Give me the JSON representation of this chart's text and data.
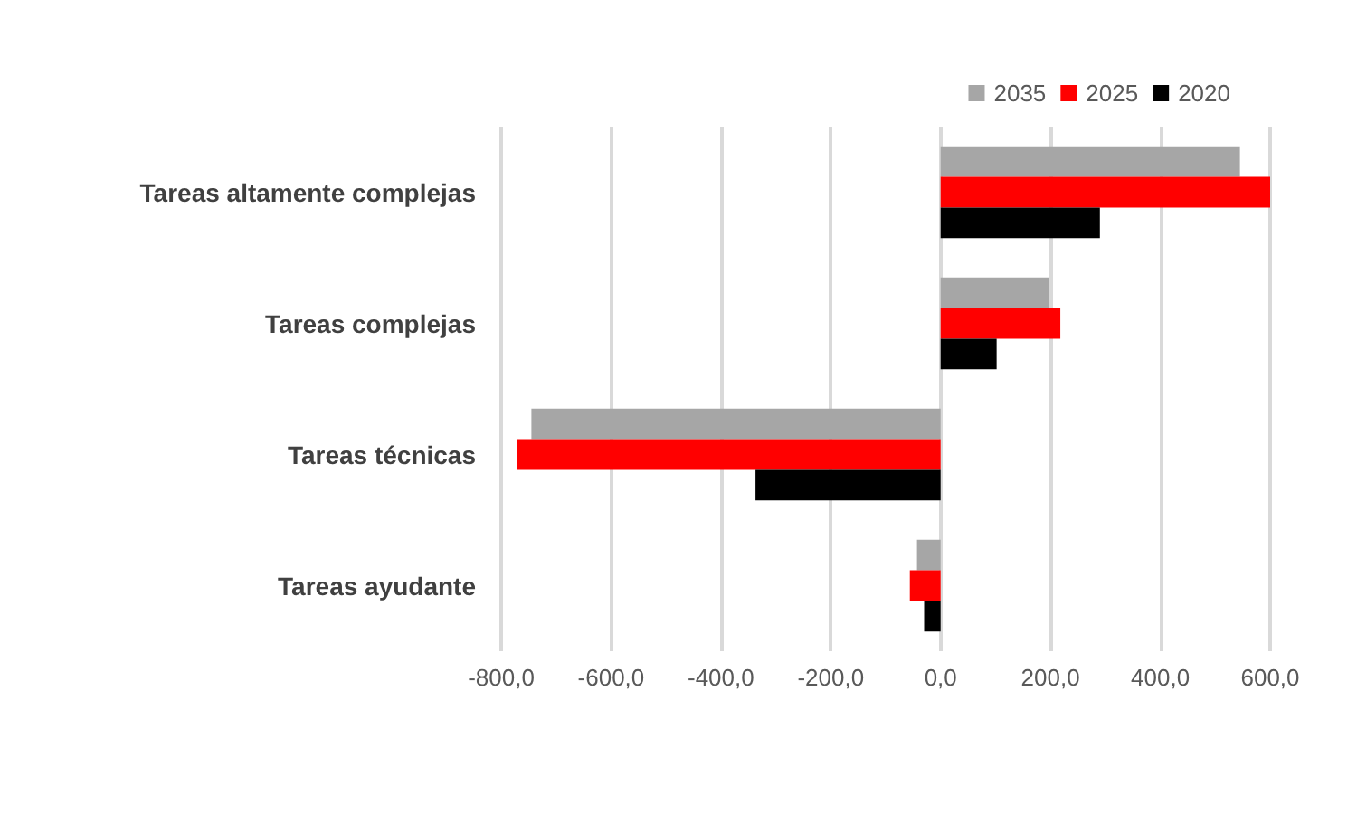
{
  "chart_data": {
    "type": "bar",
    "orientation": "horizontal",
    "categories": [
      "Tareas altamente complejas",
      "Tareas complejas",
      "Tareas técnicas",
      "Tareas ayudante"
    ],
    "series": [
      {
        "name": "2035",
        "color": "#a6a6a6",
        "values": [
          545,
          198,
          -745,
          -43
        ]
      },
      {
        "name": "2025",
        "color": "#ff0000",
        "values": [
          600,
          218,
          -772,
          -56
        ]
      },
      {
        "name": "2020",
        "color": "#000000",
        "values": [
          290,
          102,
          -337,
          -30
        ]
      }
    ],
    "xlim": [
      -800,
      600
    ],
    "xticks": [
      {
        "value": -800,
        "label": "-800,0"
      },
      {
        "value": -600,
        "label": "-600,0"
      },
      {
        "value": -400,
        "label": "-400,0"
      },
      {
        "value": -200,
        "label": "-200,0"
      },
      {
        "value": 0,
        "label": "0,0"
      },
      {
        "value": 200,
        "label": "200,0"
      },
      {
        "value": 400,
        "label": "400,0"
      },
      {
        "value": 600,
        "label": "600,0"
      }
    ],
    "grid": "x",
    "legend": "top right"
  }
}
